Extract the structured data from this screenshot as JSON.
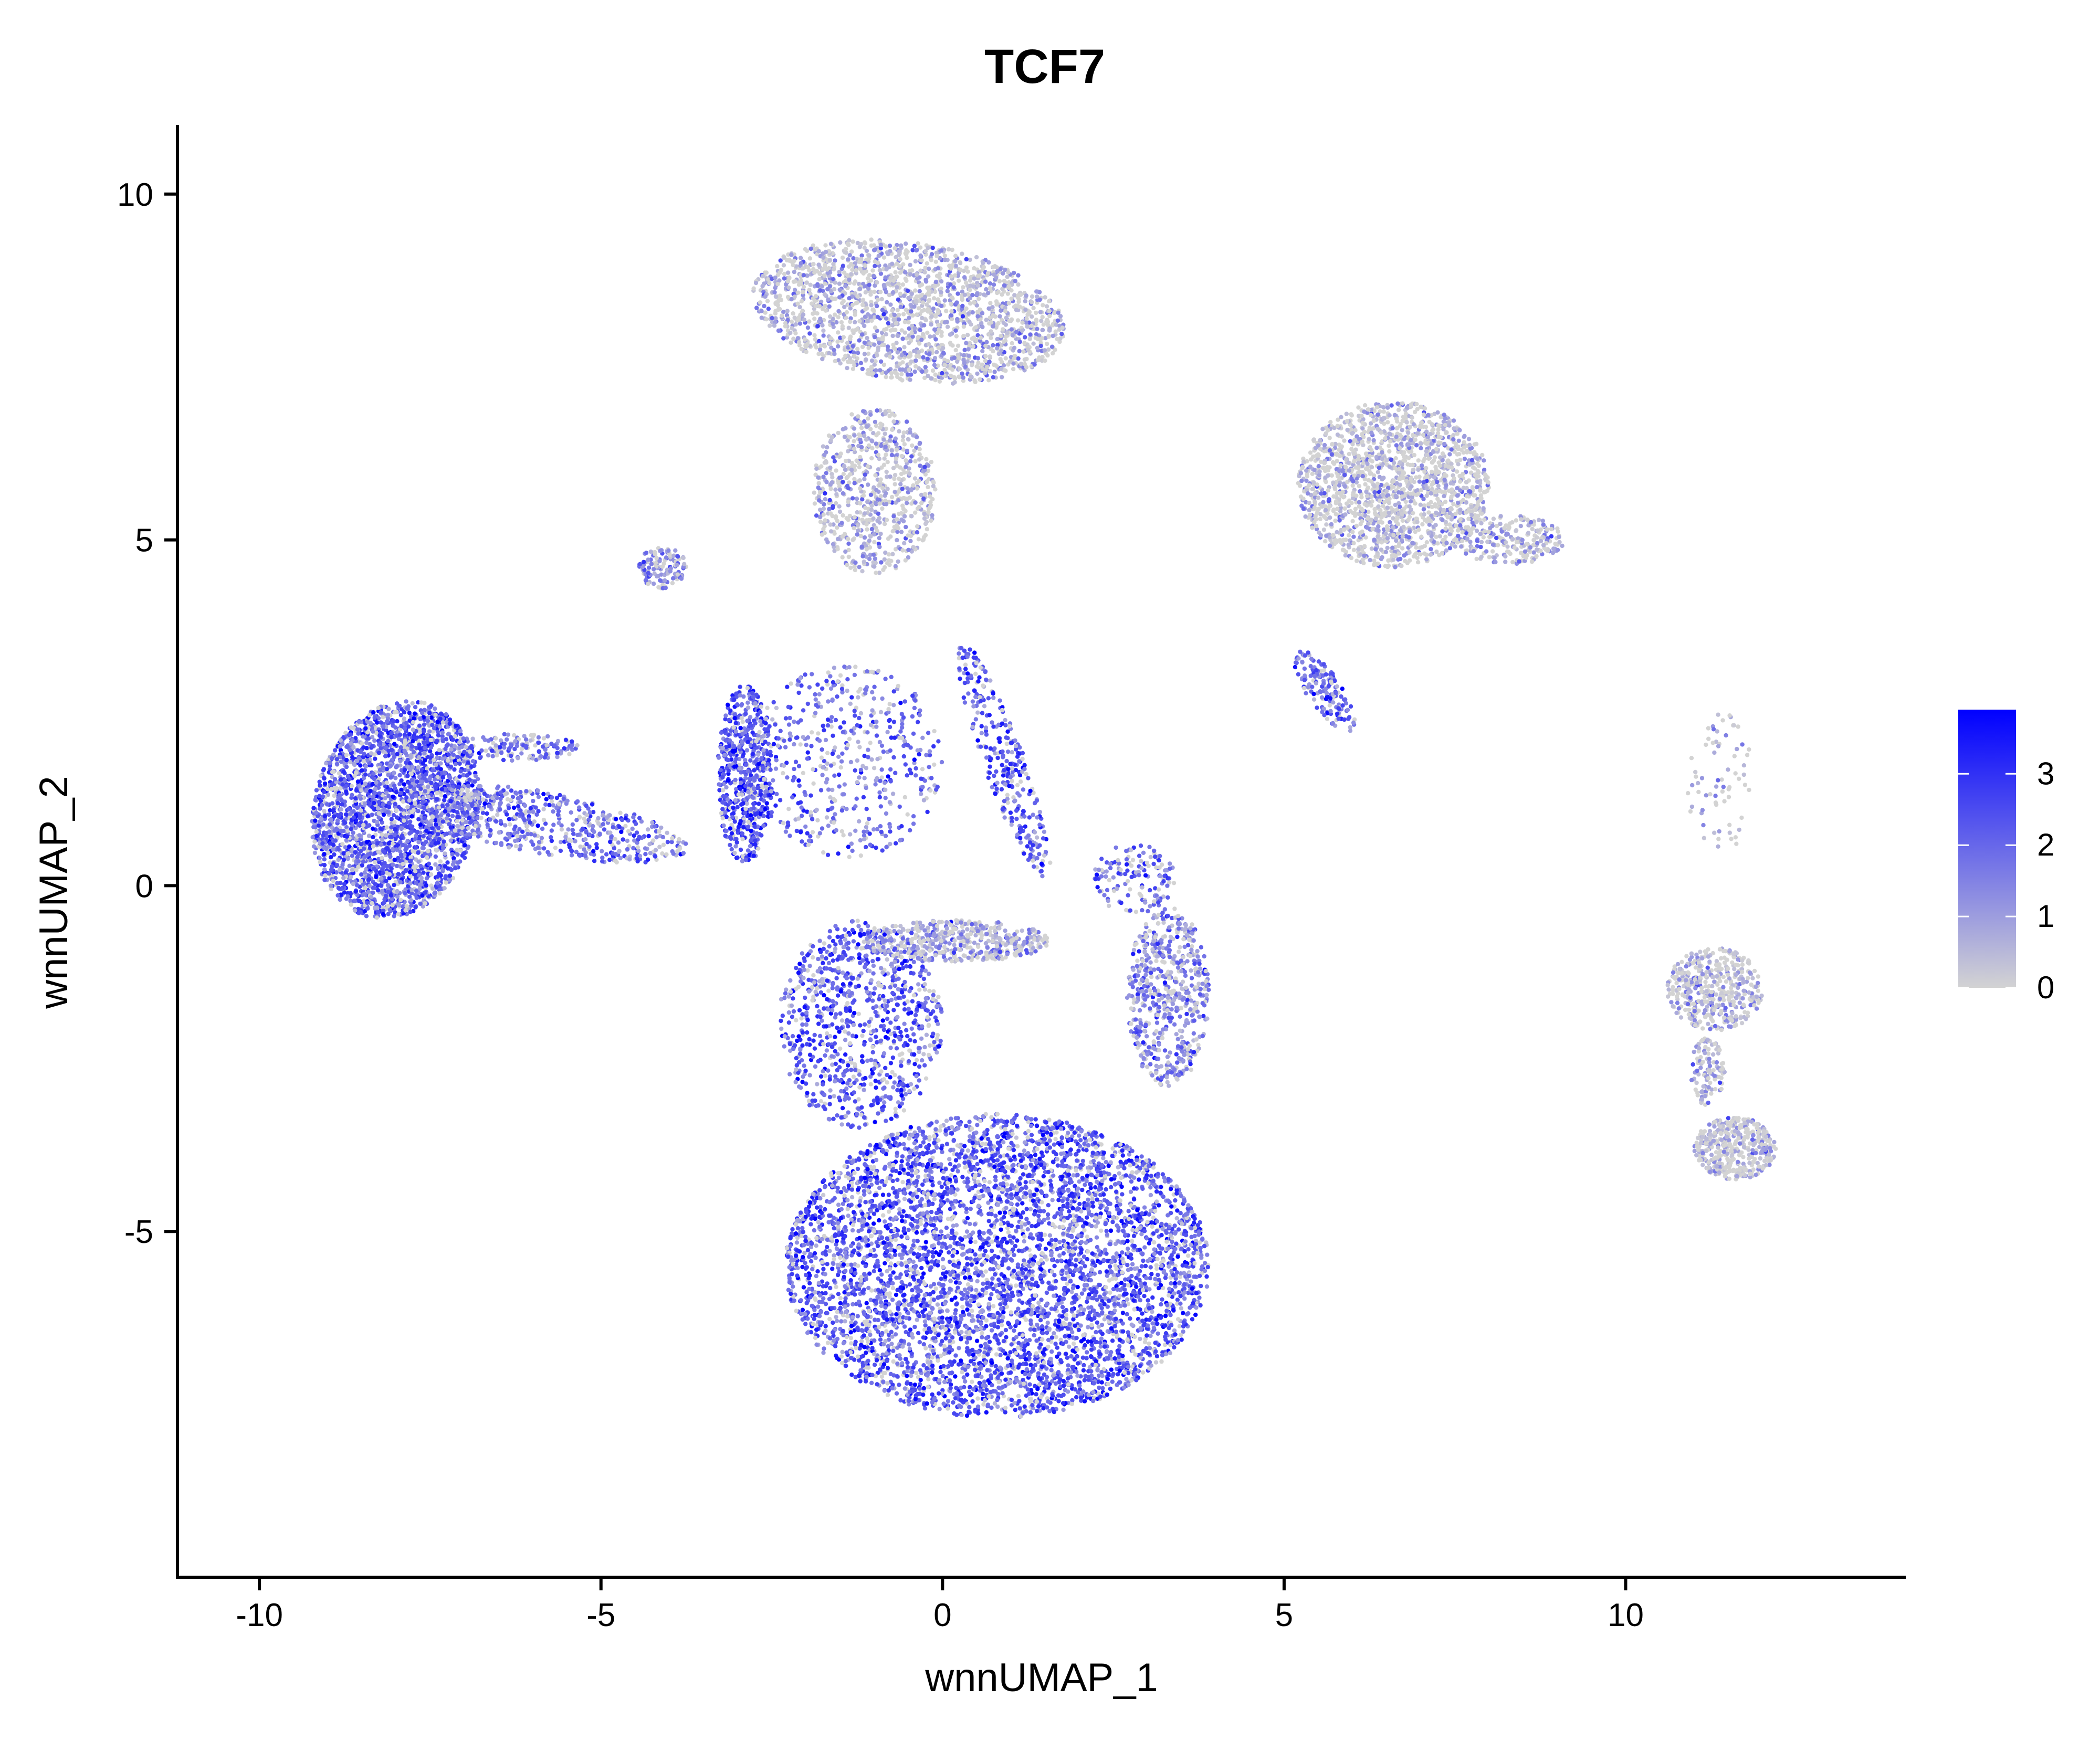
{
  "chart_data": {
    "type": "scatter",
    "title": "TCF7",
    "xlabel": "wnnUMAP_1",
    "ylabel": "wnnUMAP_2",
    "xlim": [
      -11.2,
      14.1
    ],
    "ylim": [
      -10.0,
      11.0
    ],
    "x_ticks": [
      {
        "value": -10,
        "label": "-10"
      },
      {
        "value": -5,
        "label": "-5"
      },
      {
        "value": 0,
        "label": "0"
      },
      {
        "value": 5,
        "label": "5"
      },
      {
        "value": 10,
        "label": "10"
      }
    ],
    "y_ticks": [
      {
        "value": -5,
        "label": "-5"
      },
      {
        "value": 0,
        "label": "0"
      },
      {
        "value": 5,
        "label": "5"
      },
      {
        "value": 10,
        "label": "10"
      }
    ],
    "grid": false,
    "legend": {
      "placement": "right",
      "type": "colorbar",
      "range": [
        0,
        3.9
      ],
      "ticks": [
        {
          "value": 0,
          "label": "0"
        },
        {
          "value": 1,
          "label": "1"
        },
        {
          "value": 2,
          "label": "2"
        },
        {
          "value": 3,
          "label": "3"
        }
      ],
      "color_low": "#d3d3d3",
      "color_high": "#0000ff"
    },
    "clusters": [
      {
        "id": "left-blob",
        "cx": -8.0,
        "cy": 1.1,
        "rx": 1.2,
        "ry": 1.6,
        "rot": -15,
        "n": 2600,
        "expr": 2.1
      },
      {
        "id": "left-tail",
        "cx": -5.8,
        "cy": 0.9,
        "rx": 2.1,
        "ry": 0.45,
        "rot": -10,
        "n": 550,
        "expr": 1.8
      },
      {
        "id": "left-arc",
        "cx": -6.2,
        "cy": 2.0,
        "rx": 0.9,
        "ry": 0.2,
        "rot": 0,
        "n": 140,
        "expr": 1.8
      },
      {
        "id": "top-cluster",
        "cx": -0.5,
        "cy": 8.3,
        "rx": 2.3,
        "ry": 1.0,
        "rot": -8,
        "n": 1900,
        "expr": 0.4
      },
      {
        "id": "top-stem",
        "cx": -1.0,
        "cy": 5.7,
        "rx": 0.9,
        "ry": 1.2,
        "rot": 0,
        "n": 700,
        "expr": 0.5
      },
      {
        "id": "small-left-top",
        "cx": -4.1,
        "cy": 4.6,
        "rx": 0.35,
        "ry": 0.3,
        "rot": 0,
        "n": 120,
        "expr": 0.9
      },
      {
        "id": "mid-stripe",
        "cx": -2.9,
        "cy": 1.6,
        "rx": 0.4,
        "ry": 1.3,
        "rot": 0,
        "n": 600,
        "expr": 2.4
      },
      {
        "id": "mid-scatter",
        "cx": -1.4,
        "cy": 1.8,
        "rx": 1.4,
        "ry": 1.4,
        "rot": 0,
        "n": 500,
        "expr": 1.9
      },
      {
        "id": "mid-diagonal",
        "cx": 0.9,
        "cy": 1.8,
        "rx": 0.3,
        "ry": 1.8,
        "rot": 20,
        "n": 300,
        "expr": 2.2
      },
      {
        "id": "big-bottom",
        "cx": 0.8,
        "cy": -5.5,
        "rx": 3.1,
        "ry": 2.2,
        "rot": 0,
        "n": 5200,
        "expr": 2.2
      },
      {
        "id": "bottom-upper",
        "cx": -1.2,
        "cy": -2.0,
        "rx": 1.2,
        "ry": 1.5,
        "rot": 0,
        "n": 900,
        "expr": 2.2
      },
      {
        "id": "bottom-shelf",
        "cx": 0.2,
        "cy": -0.8,
        "rx": 1.4,
        "ry": 0.3,
        "rot": 0,
        "n": 500,
        "expr": 0.7
      },
      {
        "id": "right-arm",
        "cx": 3.3,
        "cy": -1.6,
        "rx": 0.6,
        "ry": 1.3,
        "rot": 0,
        "n": 600,
        "expr": 1.3
      },
      {
        "id": "right-arm-top",
        "cx": 2.8,
        "cy": 0.1,
        "rx": 0.6,
        "ry": 0.5,
        "rot": 0,
        "n": 140,
        "expr": 1.8
      },
      {
        "id": "right-top",
        "cx": 6.6,
        "cy": 5.8,
        "rx": 1.4,
        "ry": 1.2,
        "rot": 0,
        "n": 1700,
        "expr": 0.2
      },
      {
        "id": "right-top-arm",
        "cx": 8.3,
        "cy": 5.0,
        "rx": 0.8,
        "ry": 0.35,
        "rot": 0,
        "n": 230,
        "expr": 0.4
      },
      {
        "id": "right-top-tail",
        "cx": 5.6,
        "cy": 2.8,
        "rx": 0.25,
        "ry": 0.7,
        "rot": 35,
        "n": 160,
        "expr": 2.0
      },
      {
        "id": "far-right-upper",
        "cx": 11.3,
        "cy": -1.5,
        "rx": 0.7,
        "ry": 0.6,
        "rot": 0,
        "n": 450,
        "expr": 0.3
      },
      {
        "id": "far-right-lower",
        "cx": 11.6,
        "cy": -3.8,
        "rx": 0.6,
        "ry": 0.45,
        "rot": 0,
        "n": 420,
        "expr": 0.2
      },
      {
        "id": "far-right-neck",
        "cx": 11.2,
        "cy": -2.7,
        "rx": 0.25,
        "ry": 0.5,
        "rot": 0,
        "n": 110,
        "expr": 0.3
      },
      {
        "id": "far-right-dots",
        "cx": 11.4,
        "cy": 1.5,
        "rx": 0.5,
        "ry": 1.0,
        "rot": 0,
        "n": 70,
        "expr": 0.3
      }
    ]
  }
}
